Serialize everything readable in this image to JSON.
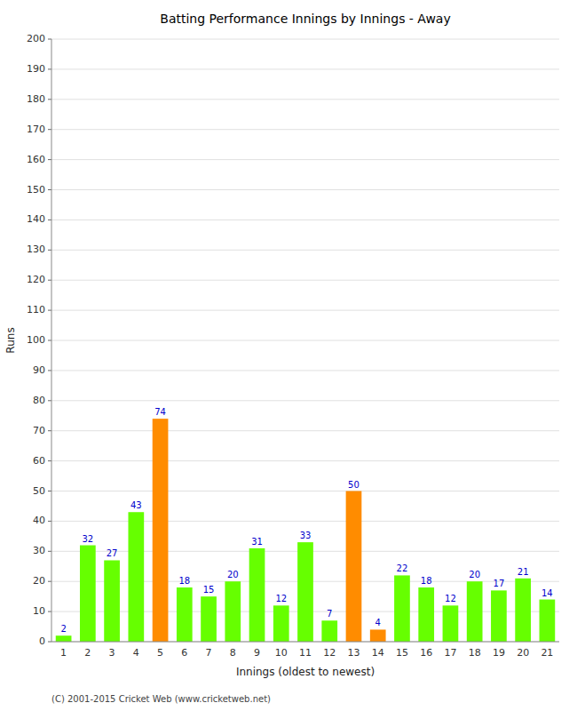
{
  "chart_data": {
    "type": "bar",
    "title": "Batting Performance Innings by Innings - Away",
    "x_label": "Innings (oldest to newest)",
    "y_label": "Runs",
    "categories": [
      "1",
      "2",
      "3",
      "4",
      "5",
      "6",
      "7",
      "8",
      "9",
      "10",
      "11",
      "12",
      "13",
      "14",
      "15",
      "16",
      "17",
      "18",
      "19",
      "20",
      "21"
    ],
    "values": [
      2,
      32,
      27,
      43,
      74,
      18,
      15,
      20,
      31,
      12,
      33,
      7,
      50,
      4,
      22,
      18,
      12,
      20,
      17,
      21,
      14
    ],
    "colors": [
      "#66ff00",
      "#66ff00",
      "#66ff00",
      "#66ff00",
      "#ff8c00",
      "#66ff00",
      "#66ff00",
      "#66ff00",
      "#66ff00",
      "#66ff00",
      "#66ff00",
      "#66ff00",
      "#ff8c00",
      "#ff8c00",
      "#66ff00",
      "#66ff00",
      "#66ff00",
      "#66ff00",
      "#66ff00",
      "#66ff00",
      "#66ff00"
    ],
    "ylim": [
      0,
      200
    ],
    "yticks": [
      0,
      10,
      20,
      30,
      40,
      50,
      60,
      70,
      80,
      90,
      100,
      110,
      120,
      130,
      140,
      150,
      160,
      170,
      180,
      190,
      200
    ],
    "grid": true,
    "data_labels": true,
    "annotations": [
      "(C) 2001-2015 Cricket Web (www.cricketweb.net)"
    ]
  }
}
